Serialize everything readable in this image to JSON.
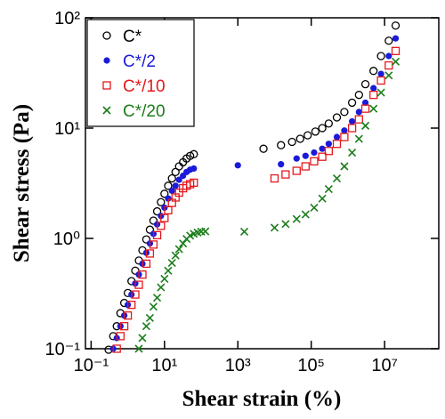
{
  "chart_data": {
    "type": "scatter",
    "x_label": "Shear strain (%)",
    "y_label": "Shear stress (Pa)",
    "xlog": true,
    "ylog": true,
    "xlim": [
      0.07,
      300000000
    ],
    "ylim": [
      0.1,
      100
    ],
    "xticks": [
      {
        "value": 0.1,
        "label": "10⁻¹"
      },
      {
        "value": 10,
        "label": "10¹"
      },
      {
        "value": 1000,
        "label": "10³"
      },
      {
        "value": 100000,
        "label": "10⁵"
      },
      {
        "value": 10000000,
        "label": "10⁷"
      }
    ],
    "yticks": [
      {
        "value": 0.1,
        "label": "10⁻¹"
      },
      {
        "value": 1,
        "label": "10⁰"
      },
      {
        "value": 10,
        "label": "10¹"
      },
      {
        "value": 100,
        "label": "10²"
      }
    ],
    "legend": "upper left",
    "series": [
      {
        "name": "C*",
        "color": "#000000",
        "marker": "open-circle",
        "x": [
          0.3,
          0.4,
          0.5,
          0.63,
          0.8,
          1,
          1.26,
          1.6,
          2,
          2.5,
          3.2,
          4,
          5,
          6.3,
          8,
          10,
          12.6,
          16,
          20,
          25,
          32,
          40,
          50,
          63,
          5000,
          15000,
          30000,
          50000,
          80000,
          130000,
          200000,
          300000,
          500000,
          800000,
          1300000,
          2000000,
          3000000,
          5000000,
          8000000,
          13000000,
          20000000
        ],
        "values": [
          0.098,
          0.13,
          0.16,
          0.21,
          0.26,
          0.32,
          0.41,
          0.51,
          0.63,
          0.78,
          0.98,
          1.2,
          1.45,
          1.76,
          2.13,
          2.54,
          3.0,
          3.5,
          4.0,
          4.5,
          4.9,
          5.3,
          5.6,
          5.8,
          6.5,
          7.0,
          7.5,
          8,
          8.6,
          9.3,
          10,
          11,
          12.5,
          14,
          17,
          20,
          25,
          33,
          45,
          62,
          85
        ]
      },
      {
        "name": "C*/2",
        "color": "#1a1ad8",
        "marker": "filled-circle",
        "x": [
          0.4,
          0.5,
          0.63,
          0.8,
          1,
          1.26,
          1.6,
          2,
          2.5,
          3.2,
          4,
          5,
          6.3,
          8,
          10,
          12.6,
          16,
          20,
          25,
          32,
          40,
          50,
          63,
          1000,
          15000,
          40000,
          70000,
          120000,
          200000,
          300000,
          500000,
          800000,
          1300000,
          2000000,
          3000000,
          5000000,
          8000000,
          13000000,
          20000000
        ],
        "values": [
          0.1,
          0.125,
          0.16,
          0.2,
          0.25,
          0.31,
          0.39,
          0.47,
          0.59,
          0.74,
          0.9,
          1.1,
          1.34,
          1.6,
          1.9,
          2.3,
          2.7,
          3.0,
          3.4,
          3.7,
          4.0,
          4.2,
          4.3,
          4.6,
          4.7,
          5.3,
          5.6,
          6,
          6.5,
          7.2,
          8.3,
          9.5,
          11.5,
          14,
          17,
          23,
          31,
          45,
          65
        ]
      },
      {
        "name": "C*/10",
        "color": "#e3191c",
        "marker": "open-square",
        "x": [
          0.5,
          0.63,
          0.8,
          1,
          1.26,
          1.6,
          2,
          2.5,
          3.2,
          4,
          5,
          6.3,
          8,
          10,
          12.6,
          16,
          20,
          25,
          32,
          40,
          50,
          63,
          10000,
          20000,
          40000,
          70000,
          120000,
          200000,
          300000,
          500000,
          800000,
          1300000,
          2000000,
          3000000,
          5000000,
          8000000,
          13000000,
          20000000
        ],
        "values": [
          0.1,
          0.13,
          0.16,
          0.2,
          0.25,
          0.31,
          0.38,
          0.47,
          0.59,
          0.73,
          0.88,
          1.07,
          1.3,
          1.53,
          1.8,
          2.1,
          2.35,
          2.6,
          2.85,
          3.0,
          3.1,
          3.2,
          3.5,
          3.8,
          4.1,
          4.5,
          5,
          5.5,
          6.2,
          7.2,
          8.3,
          10,
          12,
          15,
          20,
          27,
          37,
          50
        ]
      },
      {
        "name": "C*/20",
        "color": "#1b7d1b",
        "marker": "cross",
        "x": [
          2,
          2.5,
          3.2,
          4,
          5,
          6.3,
          8,
          10,
          12.6,
          16,
          20,
          25,
          32,
          40,
          50,
          63,
          80,
          100,
          130,
          1500,
          10000,
          20000,
          40000,
          70000,
          120000,
          200000,
          300000,
          500000,
          800000,
          1300000,
          2000000,
          3000000,
          5000000,
          8000000,
          13000000,
          20000000
        ],
        "values": [
          0.1,
          0.125,
          0.16,
          0.19,
          0.24,
          0.29,
          0.36,
          0.43,
          0.51,
          0.6,
          0.7,
          0.8,
          0.9,
          0.99,
          1.06,
          1.1,
          1.13,
          1.15,
          1.16,
          1.15,
          1.25,
          1.35,
          1.5,
          1.65,
          1.9,
          2.3,
          2.8,
          3.5,
          4.5,
          6,
          8,
          10.5,
          15,
          21,
          30,
          40
        ]
      }
    ]
  }
}
